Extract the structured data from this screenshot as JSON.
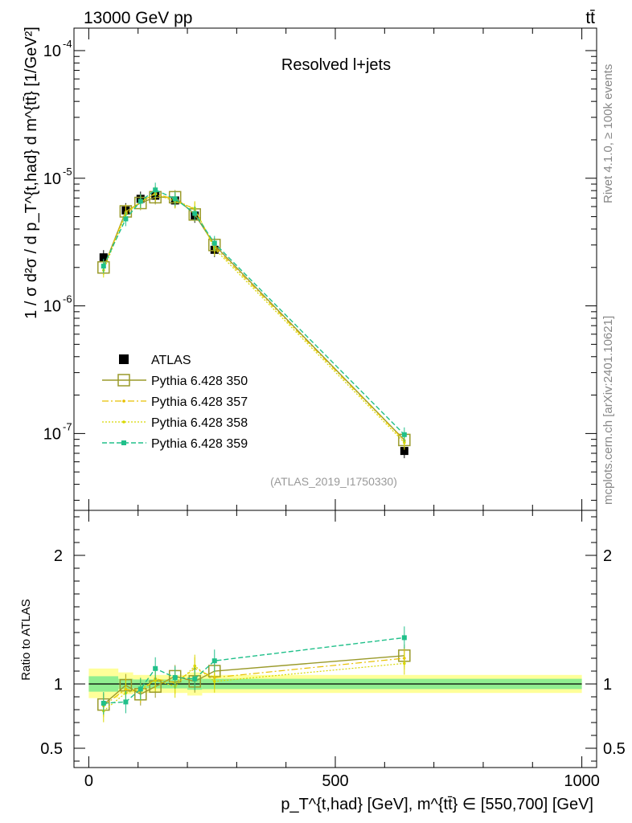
{
  "header": {
    "energy": "13000 GeV pp",
    "process": "tt̄",
    "panel_title": "Resolved l+jets",
    "analysis_id": "(ATLAS_2019_I1750330)",
    "side_text_top": "Rivet 4.1.0, ≥ 100k events",
    "side_text_bottom": "mcplots.cern.ch [arXiv:2401.10621]"
  },
  "axes": {
    "ylabel_main": "1 / σ d²σ / d p_T^{t,had} d m^{tt̄} [1/GeV²]",
    "ylabel_ratio": "Ratio to ATLAS",
    "xlabel": "p_T^{t,had} [GeV], m^{tt̄} ∈ [550,700] [GeV]",
    "main_ticks": [
      {
        "exp": "-4",
        "value": 0.0001
      },
      {
        "exp": "-5",
        "value": 1e-05
      },
      {
        "exp": "-6",
        "value": 1e-06
      },
      {
        "exp": "-7",
        "value": 1e-07
      }
    ],
    "ratio_ticks": [
      {
        "label": "2",
        "value": 2
      },
      {
        "label": "1",
        "value": 1
      },
      {
        "label": "0.5",
        "value": 0.5
      }
    ],
    "x_ticks": [
      {
        "label": "0",
        "value": 0
      },
      {
        "label": "500",
        "value": 500
      },
      {
        "label": "1000",
        "value": 1000
      }
    ]
  },
  "legend": [
    {
      "label": "ATLAS",
      "key": "atlas"
    },
    {
      "label": "Pythia 6.428 350",
      "key": "p350"
    },
    {
      "label": "Pythia 6.428 357",
      "key": "p357"
    },
    {
      "label": "Pythia 6.428 358",
      "key": "p358"
    },
    {
      "label": "Pythia 6.428 359",
      "key": "p359"
    }
  ],
  "chart_data": {
    "type": "scatter",
    "title": "Resolved l+jets",
    "xlabel": "p_T^{t,had} [GeV], m^{tt̄} ∈ [550,700] [GeV]",
    "ylabel": "1 / σ d²σ / d p_T^{t,had} d m^{tt̄} [1/GeV²]",
    "xlim": [
      -30,
      1030
    ],
    "ylim": [
      2.5e-08,
      0.00015
    ],
    "yscale": "log",
    "ratio_ylim": [
      0.35,
      2.35
    ],
    "x": [
      30,
      75,
      105,
      135,
      175,
      215,
      255,
      640
    ],
    "xerr": [
      [
        0,
        60
      ],
      [
        60,
        90
      ],
      [
        90,
        120
      ],
      [
        120,
        150
      ],
      [
        150,
        200
      ],
      [
        200,
        230
      ],
      [
        230,
        280
      ],
      [
        280,
        1000
      ]
    ],
    "series": [
      {
        "name": "ATLAS",
        "key": "atlas",
        "color": "#000000",
        "values": [
          2.4e-06,
          5.6e-06,
          6.9e-06,
          7.3e-06,
          6.7e-06,
          5.1e-06,
          2.75e-06,
          7.3e-08
        ]
      },
      {
        "name": "Pythia 6.428 350",
        "key": "p350",
        "color": "#9a9a2a",
        "values": [
          2e-06,
          5.5e-06,
          6.4e-06,
          7.1e-06,
          7.1e-06,
          5.2e-06,
          3e-06,
          8.9e-08
        ],
        "ratio": [
          0.84,
          0.99,
          0.92,
          0.98,
          1.06,
          1.02,
          1.1,
          1.22
        ]
      },
      {
        "name": "Pythia 6.428 357",
        "key": "p357",
        "color": "#e8c000",
        "values": [
          2e-06,
          5.4e-06,
          6.5e-06,
          7.6e-06,
          6.8e-06,
          5.7e-06,
          2.9e-06,
          8.8e-08
        ],
        "ratio": [
          0.83,
          0.96,
          0.94,
          1.04,
          1.01,
          1.12,
          1.05,
          1.2
        ]
      },
      {
        "name": "Pythia 6.428 358",
        "key": "p358",
        "color": "#d8d800",
        "values": [
          1.9e-06,
          5.2e-06,
          6.6e-06,
          7.5e-06,
          6.6e-06,
          5.8e-06,
          2.8e-06,
          8.5e-08
        ],
        "ratio": [
          0.79,
          0.93,
          0.96,
          1.03,
          0.98,
          1.14,
          1.02,
          1.16
        ]
      },
      {
        "name": "Pythia 6.428 359",
        "key": "p359",
        "color": "#20c08a",
        "values": [
          2.05e-06,
          4.8e-06,
          6.6e-06,
          8.1e-06,
          6.9e-06,
          5.3e-06,
          3.1e-06,
          9.8e-08
        ],
        "ratio": [
          0.85,
          0.86,
          0.96,
          1.12,
          1.05,
          1.04,
          1.18,
          1.36
        ]
      }
    ],
    "ratio_bands": [
      {
        "x0": 0,
        "x1": 60,
        "yellow": [
          0.89,
          1.12
        ],
        "green": [
          0.94,
          1.06
        ]
      },
      {
        "x0": 60,
        "x1": 90,
        "yellow": [
          0.92,
          1.09
        ],
        "green": [
          0.96,
          1.04
        ]
      },
      {
        "x0": 90,
        "x1": 200,
        "yellow": [
          0.93,
          1.07
        ],
        "green": [
          0.965,
          1.035
        ]
      },
      {
        "x0": 200,
        "x1": 230,
        "yellow": [
          0.91,
          1.09
        ],
        "green": [
          0.955,
          1.045
        ]
      },
      {
        "x0": 230,
        "x1": 1000,
        "yellow": [
          0.93,
          1.07
        ],
        "green": [
          0.96,
          1.04
        ]
      }
    ]
  }
}
